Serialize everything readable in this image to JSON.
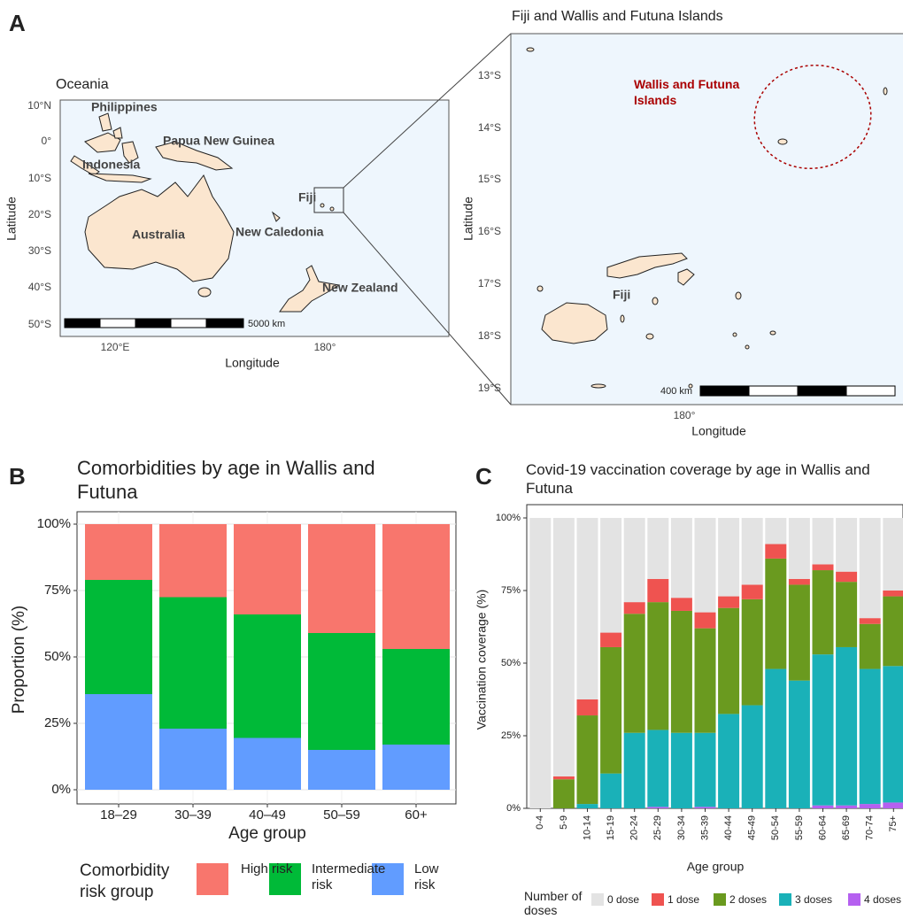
{
  "panel_labels": [
    "A",
    "B",
    "C"
  ],
  "maps": [
    {
      "title": "Oceania",
      "lat_ticks": [
        "10°N",
        "0°",
        "10°S",
        "20°S",
        "30°S",
        "40°S",
        "50°S"
      ],
      "lon_ticks": [
        "120°E",
        "180°"
      ],
      "x_label": "Longitude",
      "y_label": "Latitude",
      "places": [
        "Philippines",
        "Papua New Guinea",
        "Indonesia",
        "Australia",
        "Fiji",
        "New Caledonia",
        "New Zealand"
      ],
      "scale_label": "5000 km"
    },
    {
      "title": "Fiji and Wallis and Futuna Islands",
      "lat_ticks": [
        "13°S",
        "14°S",
        "15°S",
        "16°S",
        "17°S",
        "18°S",
        "19°S"
      ],
      "lon_ticks": [
        "180°"
      ],
      "x_label": "Longitude",
      "y_label": "Latitude",
      "places": [
        "Fiji"
      ],
      "highlight": "Wallis and Futuna Islands",
      "scale_label": "400 km"
    }
  ],
  "chart_data": [
    {
      "type": "bar",
      "stacked": true,
      "title": "Comorbidities by age in Wallis and Futuna",
      "x_label": "Age group",
      "y_label": "Proportion (%)",
      "categories": [
        "18–29",
        "30–39",
        "40–49",
        "50–59",
        "60+"
      ],
      "series": [
        {
          "name": "High risk",
          "color": "#F8766D",
          "values": [
            21,
            27.5,
            34,
            41,
            47
          ]
        },
        {
          "name": "Intermediate risk",
          "color": "#00BA38",
          "values": [
            43,
            49.5,
            46.5,
            44,
            36
          ]
        },
        {
          "name": "Low risk",
          "color": "#619CFF",
          "values": [
            36,
            23,
            19.5,
            15,
            17
          ]
        }
      ],
      "legend_title": "Comorbidity risk group",
      "legend": "bottom",
      "ylim": [
        0,
        100
      ],
      "yticks": [
        {
          "value": 0,
          "label": "0%"
        },
        {
          "value": 25,
          "label": "25%"
        },
        {
          "value": 50,
          "label": "50%"
        },
        {
          "value": 75,
          "label": "75%"
        },
        {
          "value": 100,
          "label": "100%"
        }
      ],
      "grid": true
    },
    {
      "type": "bar",
      "stacked": true,
      "title": "Covid-19 vaccination coverage by age in Wallis and Futuna",
      "x_label": "Age group",
      "y_label": "Vaccination coverage  (%)",
      "categories": [
        "0-4",
        "5-9",
        "10-14",
        "15-19",
        "20-24",
        "25-29",
        "30-34",
        "35-39",
        "40-44",
        "45-49",
        "50-54",
        "55-59",
        "60-64",
        "65-69",
        "70-74",
        "75+"
      ],
      "series": [
        {
          "name": "0 dose",
          "color": "#e3e3e3",
          "values": [
            100,
            89,
            62.5,
            39.5,
            29,
            21,
            27.5,
            32.5,
            27,
            23,
            9,
            21,
            16,
            18.5,
            34.5,
            25
          ]
        },
        {
          "name": "1 dose",
          "color": "#ef5350",
          "values": [
            0,
            1,
            5.5,
            5,
            4,
            8,
            4.5,
            5.5,
            4,
            5,
            5,
            2,
            2,
            3.5,
            2,
            2
          ]
        },
        {
          "name": "2 doses",
          "color": "#6a9a1f",
          "values": [
            0,
            10,
            30.5,
            43.5,
            41,
            44,
            42,
            36,
            36.5,
            36.5,
            38,
            33,
            29,
            22.5,
            15.5,
            24
          ]
        },
        {
          "name": "3 doses",
          "color": "#1ab1b8",
          "values": [
            0,
            0,
            1.5,
            12,
            26,
            26.5,
            26,
            25.5,
            32.5,
            35.5,
            48,
            44,
            52,
            54.5,
            46.5,
            47
          ]
        },
        {
          "name": "4 doses",
          "color": "#b560f0",
          "values": [
            0,
            0,
            0,
            0,
            0,
            0.5,
            0,
            0.5,
            0,
            0,
            0,
            0,
            1,
            1,
            1.5,
            2
          ]
        }
      ],
      "legend_title": "Number of doses",
      "legend": "bottom",
      "ylim": [
        0,
        100
      ],
      "yticks": [
        {
          "value": 0,
          "label": "0%"
        },
        {
          "value": 25,
          "label": "25%"
        },
        {
          "value": 50,
          "label": "50%"
        },
        {
          "value": 75,
          "label": "75%"
        },
        {
          "value": 100,
          "label": "100%"
        }
      ],
      "grid": false
    }
  ]
}
